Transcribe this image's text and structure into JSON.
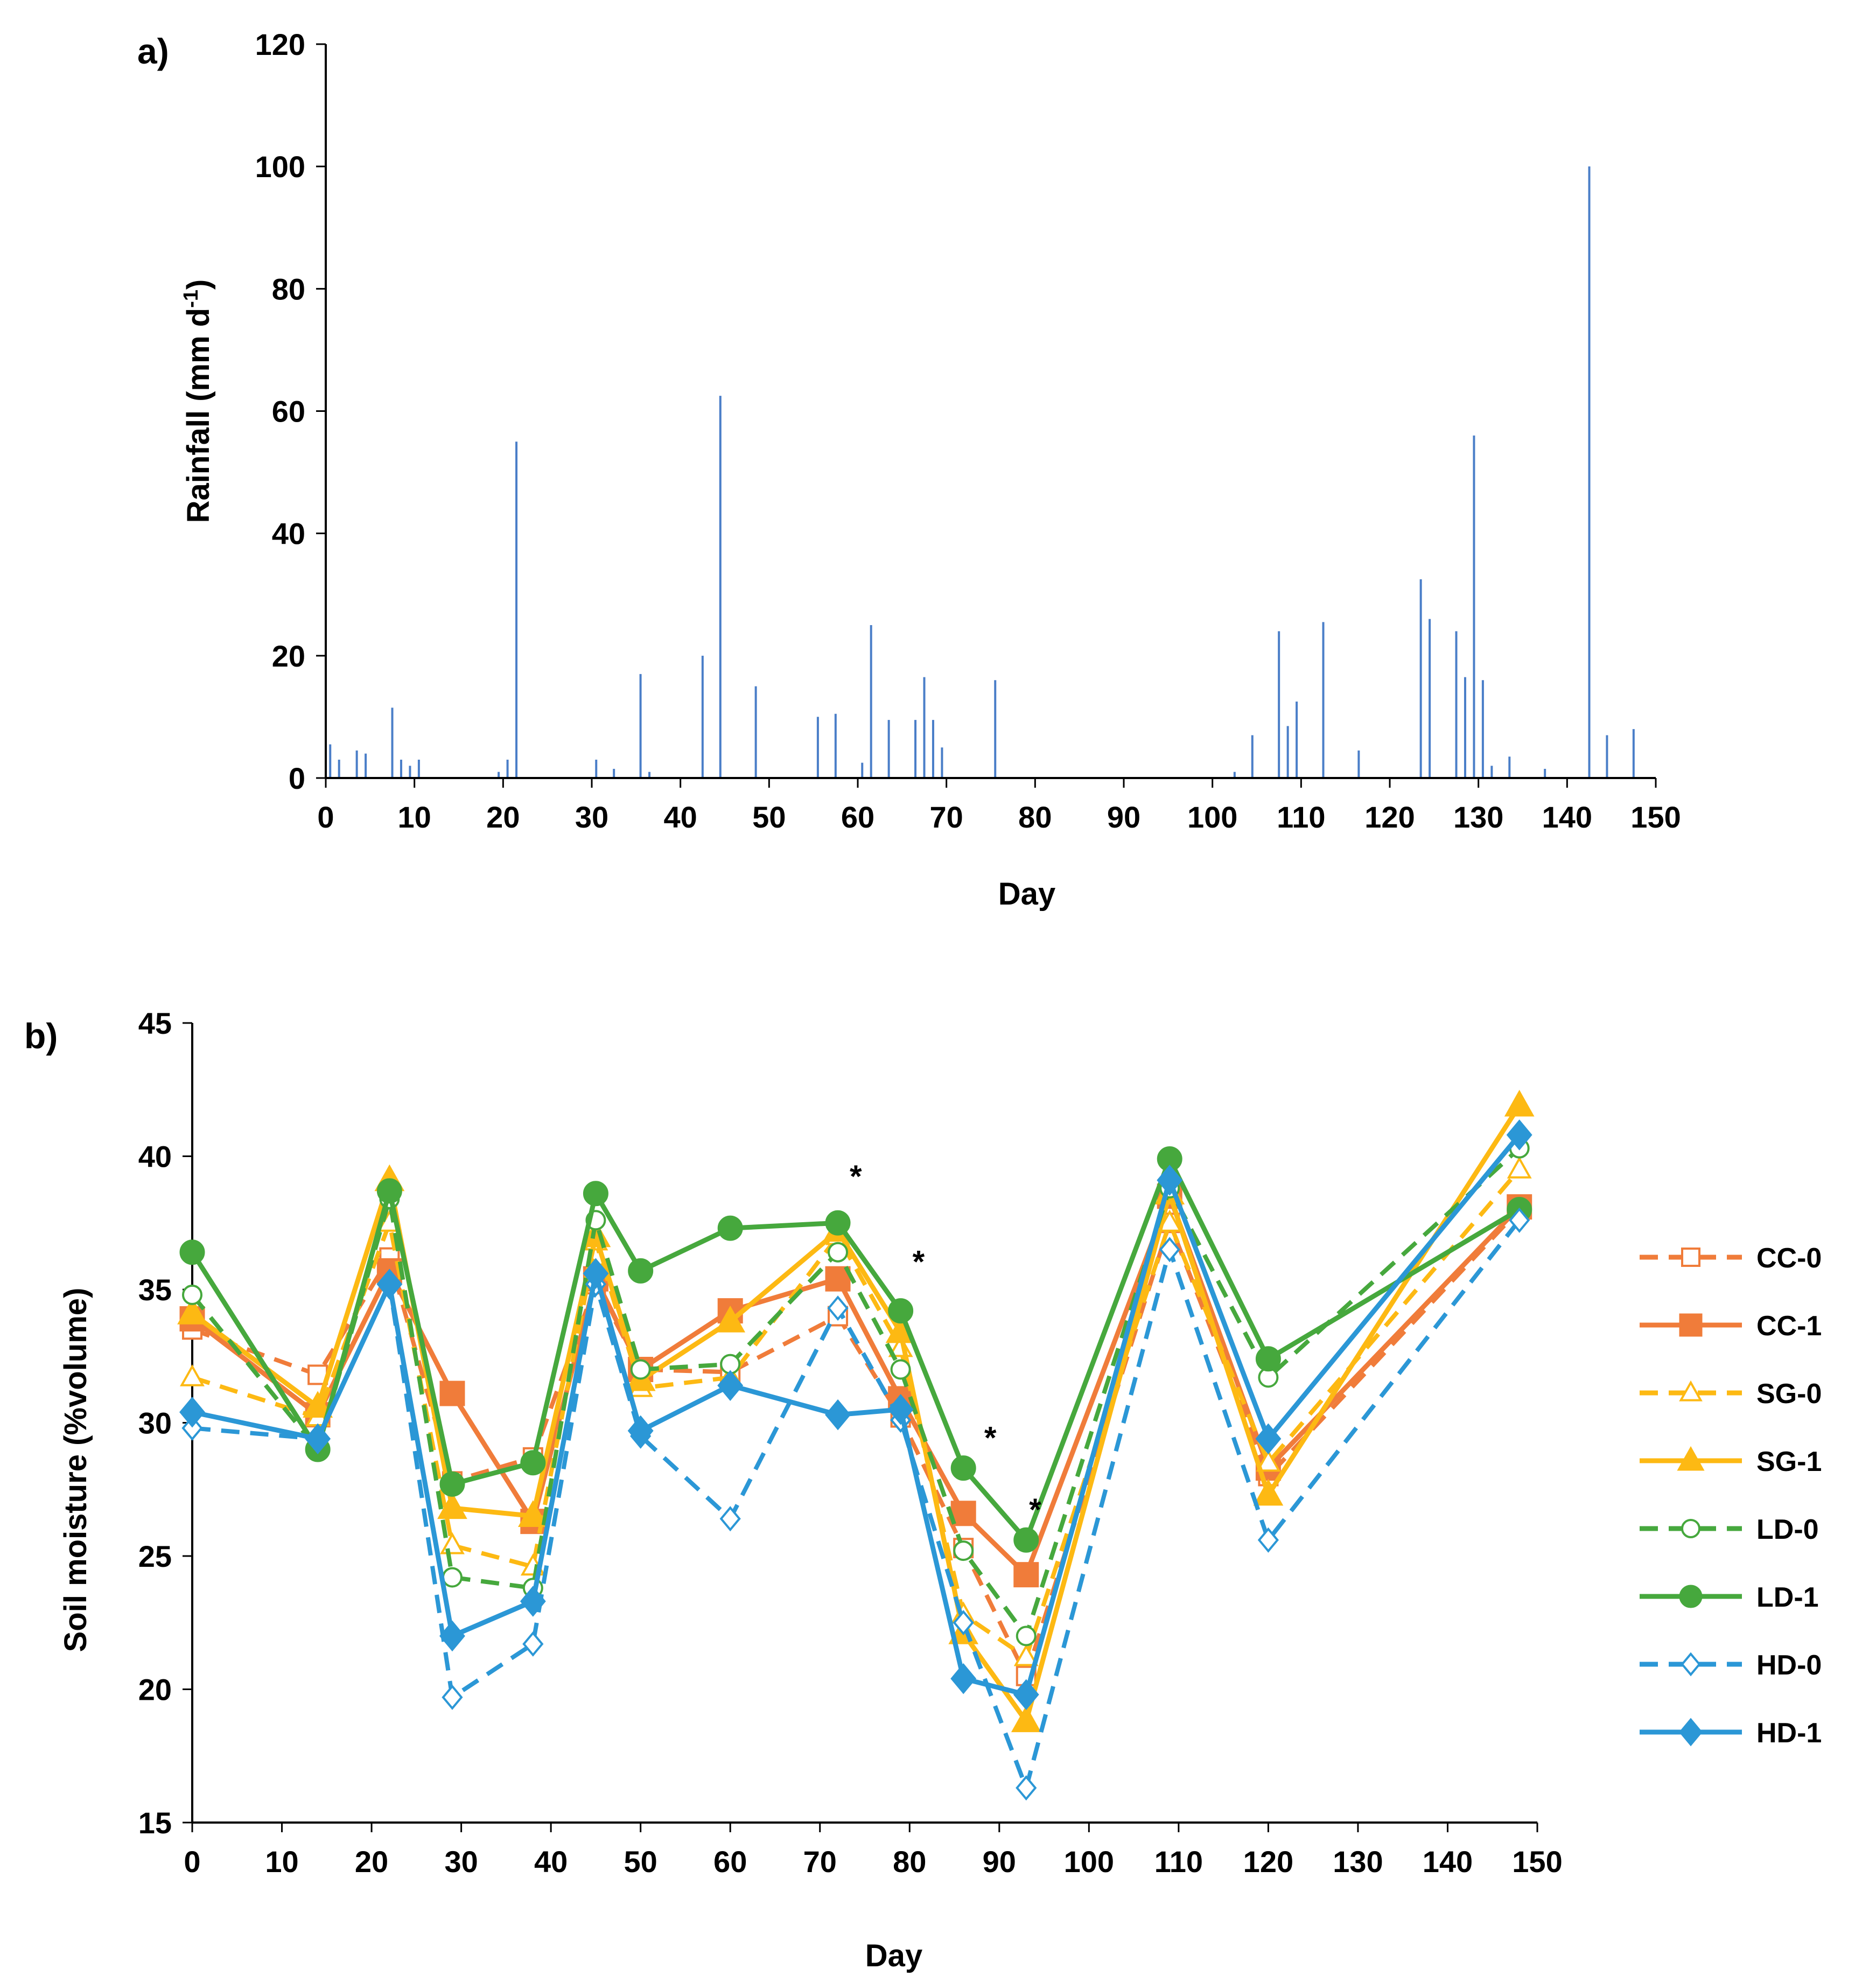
{
  "chart_data": [
    {
      "panel": "a)",
      "type": "bar",
      "title": "",
      "xlabel": "Day",
      "ylabel": "Rainfall (mm d",
      "ylabel_sup": "-1",
      "ylabel_close": ")",
      "xlim": [
        0,
        150
      ],
      "ylim": [
        0,
        120
      ],
      "xticks": [
        0,
        10,
        20,
        30,
        40,
        50,
        60,
        70,
        80,
        90,
        100,
        110,
        120,
        130,
        140,
        150
      ],
      "yticks": [
        0,
        20,
        40,
        60,
        80,
        100,
        120
      ],
      "grid": false,
      "bar_color": "#4a7ec8",
      "days": [
        0.5,
        1.5,
        3.5,
        4.5,
        7.5,
        8.5,
        9.5,
        10.5,
        19.5,
        20.5,
        21.5,
        30.5,
        32.5,
        35.5,
        36.5,
        42.5,
        44.5,
        48.5,
        55.5,
        57.5,
        60.5,
        61.5,
        63.5,
        66.5,
        67.5,
        68.5,
        69.5,
        75.5,
        102.5,
        104.5,
        107.5,
        108.5,
        109.5,
        112.5,
        116.5,
        123.5,
        124.5,
        127.5,
        128.5,
        129.5,
        130.5,
        131.5,
        133.5,
        137.5,
        142.5,
        144.5,
        147.5
      ],
      "rainfall": [
        5.5,
        3,
        4.5,
        4,
        11.5,
        3,
        2,
        3,
        1,
        3,
        55,
        3,
        1.5,
        17,
        1,
        20,
        62.5,
        15,
        10,
        10.5,
        2.5,
        25,
        9.5,
        9.5,
        16.5,
        9.5,
        5,
        16,
        1,
        7,
        24,
        8.5,
        12.5,
        25.5,
        4.5,
        32.5,
        26,
        24,
        16.5,
        56,
        16,
        2,
        3.5,
        1.5,
        100,
        7,
        8
      ]
    },
    {
      "panel": "b)",
      "type": "line",
      "title": "",
      "xlabel": "Day",
      "ylabel": "Soil moisture (%volume)",
      "xlim": [
        0,
        150
      ],
      "ylim": [
        15,
        45
      ],
      "xticks": [
        0,
        10,
        20,
        30,
        40,
        50,
        60,
        70,
        80,
        90,
        100,
        110,
        120,
        130,
        140,
        150
      ],
      "yticks": [
        15,
        20,
        25,
        30,
        35,
        40,
        45
      ],
      "grid": false,
      "legend_position": "right",
      "x": [
        0,
        14,
        22,
        29,
        38,
        45,
        50,
        60,
        72,
        79,
        86,
        93,
        109,
        120,
        148
      ],
      "series": [
        {
          "name": "CC-0",
          "color": "#f07c3a",
          "dashed": true,
          "marker": "square",
          "filled": false,
          "values": [
            33.5,
            31.8,
            36.2,
            27.8,
            28.7,
            35.2,
            32.0,
            31.9,
            34.0,
            30.2,
            25.3,
            20.5,
            37.5,
            28.0,
            38.0
          ]
        },
        {
          "name": "CC-1",
          "color": "#f07c3a",
          "dashed": false,
          "marker": "square",
          "filled": true,
          "values": [
            33.9,
            30.3,
            35.7,
            31.1,
            26.3,
            35.4,
            32.0,
            34.2,
            35.4,
            30.9,
            26.6,
            24.3,
            38.5,
            28.3,
            38.1
          ]
        },
        {
          "name": "SG-0",
          "color": "#fdb913",
          "dashed": true,
          "marker": "triangle",
          "filled": false,
          "values": [
            31.7,
            30.2,
            37.5,
            25.4,
            24.6,
            36.8,
            31.3,
            31.7,
            37.0,
            32.8,
            22.8,
            21.2,
            37.5,
            28.5,
            39.5
          ]
        },
        {
          "name": "SG-1",
          "color": "#fdb913",
          "dashed": false,
          "marker": "triangle",
          "filled": true,
          "values": [
            34.1,
            30.6,
            39.1,
            26.8,
            26.5,
            37.0,
            31.6,
            33.8,
            37.2,
            33.4,
            22.1,
            18.8,
            38.6,
            27.3,
            41.9
          ]
        },
        {
          "name": "LD-0",
          "color": "#46a83d",
          "dashed": true,
          "marker": "circle",
          "filled": false,
          "values": [
            34.8,
            29.0,
            38.4,
            24.2,
            23.8,
            37.6,
            32.0,
            32.2,
            36.4,
            32.0,
            25.2,
            22.0,
            38.8,
            31.7,
            40.3
          ]
        },
        {
          "name": "LD-1",
          "color": "#46a83d",
          "dashed": false,
          "marker": "circle",
          "filled": true,
          "values": [
            36.4,
            29.0,
            38.7,
            27.7,
            28.5,
            38.6,
            35.7,
            37.3,
            37.5,
            34.2,
            28.3,
            25.6,
            39.9,
            32.4,
            38.0
          ]
        },
        {
          "name": "HD-0",
          "color": "#2b97d6",
          "dashed": true,
          "marker": "diamond",
          "filled": false,
          "values": [
            29.8,
            29.4,
            35.2,
            19.7,
            21.7,
            35.2,
            29.5,
            26.4,
            34.3,
            30.1,
            22.5,
            16.3,
            36.5,
            25.6,
            37.6
          ]
        },
        {
          "name": "HD-1",
          "color": "#2b97d6",
          "dashed": false,
          "marker": "diamond",
          "filled": true,
          "values": [
            30.4,
            29.4,
            35.2,
            22.0,
            23.3,
            35.6,
            29.7,
            31.4,
            30.3,
            30.5,
            20.4,
            19.8,
            39.1,
            29.4,
            40.8
          ]
        }
      ],
      "annotations": [
        {
          "text": "*",
          "x": 74,
          "y": 39.4
        },
        {
          "text": "*",
          "x": 81,
          "y": 36.2
        },
        {
          "text": "*",
          "x": 89,
          "y": 29.6
        },
        {
          "text": "*",
          "x": 94,
          "y": 26.9
        }
      ]
    }
  ]
}
